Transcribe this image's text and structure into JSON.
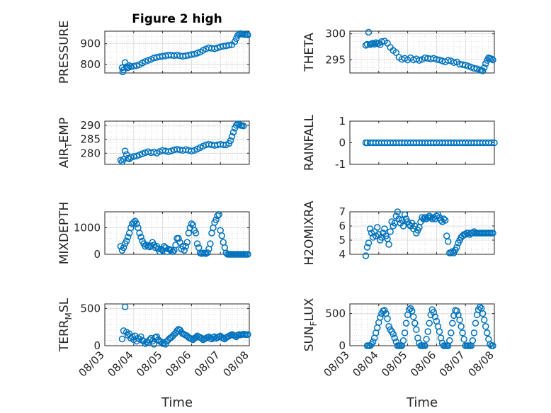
{
  "figure_title": "Figure 2 high",
  "marker_color": "#0072bd",
  "x_tick_labels": [
    "08/03",
    "08/04",
    "08/05",
    "08/06",
    "08/07",
    "08/08"
  ],
  "x_label": "Time",
  "chart_data": [
    {
      "type": "scatter",
      "title": "Figure 2 high",
      "ylabel": "PRESSURE",
      "ylabel_sub": "",
      "xlim": [
        0,
        5
      ],
      "ylim": [
        760,
        960
      ],
      "yticks": [
        800,
        900
      ],
      "grid": true,
      "x": [
        0.6,
        0.62,
        0.65,
        0.7,
        0.75,
        0.8,
        0.85,
        0.9,
        1.0,
        1.1,
        1.2,
        1.3,
        1.4,
        1.5,
        1.6,
        1.7,
        1.8,
        1.9,
        2.0,
        2.1,
        2.2,
        2.3,
        2.4,
        2.5,
        2.6,
        2.7,
        2.8,
        2.9,
        3.0,
        3.1,
        3.2,
        3.3,
        3.4,
        3.5,
        3.6,
        3.7,
        3.8,
        3.9,
        4.0,
        4.1,
        4.2,
        4.3,
        4.4,
        4.5,
        4.55,
        4.6,
        4.65,
        4.7,
        4.75,
        4.8,
        4.85,
        4.9,
        4.95
      ],
      "y": [
        785,
        765,
        775,
        810,
        790,
        785,
        795,
        790,
        792,
        795,
        800,
        808,
        815,
        820,
        825,
        832,
        835,
        838,
        840,
        842,
        845,
        845,
        843,
        845,
        842,
        840,
        842,
        845,
        848,
        850,
        855,
        860,
        868,
        875,
        880,
        878,
        876,
        880,
        885,
        888,
        890,
        893,
        895,
        910,
        925,
        940,
        945,
        948,
        946,
        945,
        944,
        944,
        942
      ]
    },
    {
      "type": "scatter",
      "title": "",
      "ylabel": "THETA",
      "ylabel_sub": "",
      "xlim": [
        0,
        5
      ],
      "ylim": [
        292.5,
        300.5
      ],
      "yticks": [
        295,
        300
      ],
      "grid": true,
      "x": [
        0.55,
        0.6,
        0.65,
        0.7,
        0.75,
        0.8,
        0.85,
        0.9,
        0.95,
        1.0,
        1.05,
        1.1,
        1.2,
        1.3,
        1.4,
        1.5,
        1.6,
        1.7,
        1.8,
        1.9,
        2.0,
        2.1,
        2.2,
        2.3,
        2.4,
        2.5,
        2.6,
        2.7,
        2.8,
        2.9,
        3.0,
        3.1,
        3.2,
        3.3,
        3.4,
        3.5,
        3.6,
        3.7,
        3.8,
        3.9,
        4.0,
        4.1,
        4.2,
        4.3,
        4.4,
        4.5,
        4.55,
        4.6,
        4.65,
        4.7,
        4.75,
        4.8,
        4.85,
        4.9,
        4.95
      ],
      "y": [
        297.8,
        298.0,
        300.3,
        297.9,
        298.1,
        298.2,
        298.0,
        298.3,
        298.1,
        298.2,
        297.9,
        298.5,
        298.6,
        298.2,
        297.4,
        296.8,
        296.4,
        295.5,
        295.1,
        295.3,
        295.0,
        295.4,
        295.0,
        295.2,
        294.9,
        295.1,
        295.4,
        295.3,
        295.2,
        295.3,
        295.1,
        295.0,
        294.8,
        294.6,
        294.9,
        294.8,
        294.5,
        294.6,
        294.2,
        294.1,
        294.0,
        293.8,
        293.6,
        293.4,
        293.3,
        293.1,
        293.0,
        292.9,
        293.5,
        294.3,
        294.9,
        295.4,
        295.3,
        295.2,
        295.0
      ]
    },
    {
      "type": "scatter",
      "title": "",
      "ylabel": "AIR",
      "ylabel_sub": "T",
      "ylabel_tail": "EMP",
      "xlim": [
        0,
        5
      ],
      "ylim": [
        276,
        291.5
      ],
      "yticks": [
        280,
        285,
        290
      ],
      "grid": true,
      "x": [
        0.55,
        0.6,
        0.65,
        0.7,
        0.75,
        0.8,
        0.85,
        0.9,
        1.0,
        1.1,
        1.2,
        1.3,
        1.4,
        1.5,
        1.6,
        1.7,
        1.8,
        1.9,
        2.0,
        2.1,
        2.2,
        2.3,
        2.4,
        2.5,
        2.6,
        2.7,
        2.8,
        2.9,
        3.0,
        3.1,
        3.2,
        3.3,
        3.4,
        3.5,
        3.6,
        3.7,
        3.8,
        3.9,
        4.0,
        4.1,
        4.2,
        4.3,
        4.35,
        4.4,
        4.45,
        4.5,
        4.55,
        4.6,
        4.65,
        4.7,
        4.75,
        4.8
      ],
      "y": [
        277.5,
        277.0,
        277.8,
        280.8,
        279.5,
        278.2,
        278.0,
        278.5,
        278.8,
        279.0,
        279.4,
        279.8,
        280.2,
        280.5,
        280.2,
        280.4,
        280.0,
        280.6,
        281.0,
        280.8,
        280.5,
        280.8,
        281.2,
        281.4,
        281.2,
        281.0,
        281.3,
        281.0,
        280.8,
        281.0,
        281.5,
        282.0,
        282.5,
        283.0,
        283.2,
        283.0,
        282.8,
        283.0,
        283.2,
        283.0,
        283.0,
        283.5,
        284.5,
        286.0,
        287.5,
        289.0,
        290.0,
        290.5,
        290.3,
        290.0,
        289.9,
        289.8
      ]
    },
    {
      "type": "scatter",
      "title": "",
      "ylabel": "RAINFALL",
      "ylabel_sub": "",
      "xlim": [
        0,
        5
      ],
      "ylim": [
        -1,
        1
      ],
      "yticks": [
        -1,
        0,
        1
      ],
      "grid": false,
      "x": [
        0.55,
        0.6,
        0.7,
        0.8,
        0.9,
        1.0,
        1.1,
        1.2,
        1.3,
        1.4,
        1.5,
        1.6,
        1.7,
        1.8,
        1.9,
        2.0,
        2.1,
        2.2,
        2.3,
        2.4,
        2.5,
        2.6,
        2.7,
        2.8,
        2.9,
        3.0,
        3.1,
        3.2,
        3.3,
        3.4,
        3.5,
        3.6,
        3.7,
        3.8,
        3.9,
        4.0,
        4.1,
        4.2,
        4.3,
        4.4,
        4.5,
        4.6,
        4.7,
        4.8,
        4.9,
        5.0
      ],
      "y": [
        0,
        0,
        0,
        0,
        0,
        0,
        0,
        0,
        0,
        0,
        0,
        0,
        0,
        0,
        0,
        0,
        0,
        0,
        0,
        0,
        0,
        0,
        0,
        0,
        0,
        0,
        0,
        0,
        0,
        0,
        0,
        0,
        0,
        0,
        0,
        0,
        0,
        0,
        0,
        0,
        0,
        0,
        0,
        0,
        0,
        0
      ]
    },
    {
      "type": "scatter",
      "title": "",
      "ylabel": "MIXDEPTH",
      "ylabel_sub": "",
      "xlim": [
        0,
        5
      ],
      "ylim": [
        0,
        1600
      ],
      "yticks": [
        0,
        1000
      ],
      "grid": true,
      "x": [
        0.55,
        0.6,
        0.65,
        0.7,
        0.75,
        0.8,
        0.85,
        0.9,
        0.95,
        1.0,
        1.05,
        1.1,
        1.15,
        1.2,
        1.25,
        1.3,
        1.35,
        1.4,
        1.45,
        1.5,
        1.55,
        1.6,
        1.65,
        1.7,
        1.75,
        1.8,
        1.85,
        1.9,
        1.95,
        2.0,
        2.05,
        2.1,
        2.15,
        2.2,
        2.25,
        2.3,
        2.35,
        2.4,
        2.45,
        2.5,
        2.55,
        2.6,
        2.65,
        2.7,
        2.75,
        2.8,
        2.85,
        2.9,
        2.95,
        3.0,
        3.05,
        3.1,
        3.15,
        3.2,
        3.25,
        3.3,
        3.35,
        3.4,
        3.45,
        3.5,
        3.55,
        3.6,
        3.65,
        3.7,
        3.75,
        3.8,
        3.85,
        3.9,
        3.95,
        4.0,
        4.05,
        4.1,
        4.15,
        4.2,
        4.25,
        4.3,
        4.35,
        4.4,
        4.45,
        4.5,
        4.55,
        4.6,
        4.65,
        4.7,
        4.75,
        4.8,
        4.85,
        4.9,
        4.95
      ],
      "y": [
        300,
        150,
        250,
        400,
        500,
        650,
        800,
        1000,
        1150,
        1200,
        1250,
        1150,
        1000,
        800,
        650,
        500,
        400,
        300,
        350,
        300,
        280,
        320,
        450,
        350,
        250,
        300,
        200,
        100,
        200,
        150,
        300,
        250,
        100,
        200,
        180,
        160,
        100,
        150,
        350,
        600,
        600,
        450,
        200,
        300,
        150,
        300,
        450,
        800,
        1000,
        1150,
        1100,
        900,
        800,
        400,
        250,
        50,
        30,
        50,
        40,
        30,
        60,
        200,
        400,
        800,
        1000,
        1200,
        1300,
        1450,
        1500,
        900,
        700,
        450,
        250,
        50,
        0,
        0,
        0,
        0,
        0,
        0,
        0,
        0,
        0,
        0,
        0,
        0,
        0,
        0,
        0
      ]
    },
    {
      "type": "scatter",
      "title": "",
      "ylabel": "H2OMIXRA",
      "ylabel_sub": "",
      "xlim": [
        0,
        5
      ],
      "ylim": [
        4,
        7
      ],
      "yticks": [
        4,
        5,
        6,
        7
      ],
      "grid": true,
      "x": [
        0.55,
        0.6,
        0.65,
        0.7,
        0.75,
        0.8,
        0.85,
        0.9,
        0.95,
        1.0,
        1.05,
        1.1,
        1.15,
        1.2,
        1.25,
        1.3,
        1.35,
        1.4,
        1.45,
        1.5,
        1.55,
        1.6,
        1.65,
        1.7,
        1.75,
        1.8,
        1.85,
        1.9,
        1.95,
        2.0,
        2.05,
        2.1,
        2.15,
        2.2,
        2.25,
        2.3,
        2.35,
        2.4,
        2.45,
        2.5,
        2.55,
        2.6,
        2.65,
        2.7,
        2.75,
        2.8,
        2.85,
        2.9,
        2.95,
        3.0,
        3.05,
        3.1,
        3.15,
        3.2,
        3.25,
        3.3,
        3.35,
        3.4,
        3.45,
        3.5,
        3.55,
        3.6,
        3.65,
        3.7,
        3.75,
        3.8,
        3.85,
        3.9,
        3.95,
        4.0,
        4.05,
        4.1,
        4.15,
        4.2,
        4.25,
        4.3,
        4.35,
        4.4,
        4.45,
        4.5,
        4.55,
        4.6,
        4.65,
        4.7,
        4.75,
        4.8,
        4.85,
        4.9,
        4.95
      ],
      "y": [
        3.9,
        4.5,
        4.8,
        5.8,
        5.5,
        5.2,
        5.6,
        5.3,
        5.9,
        5.4,
        5.0,
        5.2,
        5.5,
        5.8,
        5.3,
        5.1,
        4.7,
        5.6,
        6.3,
        6.0,
        6.2,
        6.7,
        7.0,
        6.5,
        6.2,
        6.4,
        6.0,
        6.8,
        6.5,
        6.3,
        6.1,
        6.0,
        6.2,
        5.8,
        6.0,
        5.5,
        5.7,
        5.9,
        6.3,
        6.6,
        6.5,
        6.6,
        6.5,
        6.6,
        6.7,
        6.6,
        6.5,
        6.6,
        6.5,
        6.7,
        6.8,
        6.6,
        6.4,
        6.3,
        6.5,
        6.4,
        5.3,
        4.9,
        4.1,
        4.1,
        4.2,
        4.1,
        4.3,
        4.5,
        4.8,
        5.0,
        5.2,
        5.3,
        5.4,
        5.4,
        5.5,
        5.5,
        5.4,
        5.5,
        5.5,
        5.6,
        5.5,
        5.5,
        5.5,
        5.5,
        5.5,
        5.5,
        5.5,
        5.5,
        5.5,
        5.5,
        5.5,
        5.5,
        5.5
      ]
    },
    {
      "type": "scatter",
      "title": "",
      "ylabel": "TERR",
      "ylabel_sub": "M",
      "ylabel_tail": "SL",
      "xlim": [
        0,
        5
      ],
      "ylim": [
        0,
        560
      ],
      "yticks": [
        0,
        500
      ],
      "grid": true,
      "x": [
        0.6,
        0.65,
        0.7,
        0.75,
        0.8,
        0.85,
        0.9,
        0.95,
        1.0,
        1.05,
        1.1,
        1.15,
        1.2,
        1.25,
        1.3,
        1.35,
        1.4,
        1.45,
        1.5,
        1.55,
        1.6,
        1.65,
        1.7,
        1.75,
        1.8,
        1.85,
        1.9,
        1.95,
        2.0,
        2.05,
        2.1,
        2.15,
        2.2,
        2.25,
        2.3,
        2.35,
        2.4,
        2.45,
        2.5,
        2.55,
        2.6,
        2.65,
        2.7,
        2.75,
        2.8,
        2.85,
        2.9,
        2.95,
        3.0,
        3.05,
        3.1,
        3.15,
        3.2,
        3.25,
        3.3,
        3.35,
        3.4,
        3.45,
        3.5,
        3.55,
        3.6,
        3.65,
        3.7,
        3.75,
        3.8,
        3.85,
        3.9,
        3.95,
        4.0,
        4.05,
        4.1,
        4.15,
        4.2,
        4.25,
        4.3,
        4.35,
        4.4,
        4.45,
        4.5,
        4.55,
        4.6,
        4.65,
        4.7,
        4.75,
        4.8,
        4.85,
        4.9,
        4.95
      ],
      "y": [
        90,
        200,
        520,
        180,
        140,
        160,
        100,
        120,
        80,
        130,
        60,
        100,
        90,
        120,
        70,
        60,
        30,
        50,
        40,
        80,
        100,
        60,
        20,
        110,
        120,
        80,
        60,
        50,
        30,
        40,
        20,
        60,
        80,
        100,
        110,
        130,
        150,
        170,
        200,
        220,
        210,
        180,
        160,
        150,
        140,
        130,
        110,
        100,
        90,
        80,
        100,
        110,
        130,
        120,
        110,
        100,
        80,
        90,
        100,
        110,
        120,
        100,
        90,
        110,
        120,
        100,
        110,
        120,
        130,
        110,
        100,
        90,
        110,
        120,
        130,
        140,
        150,
        140,
        130,
        120,
        140,
        150,
        145,
        150,
        155,
        150,
        148,
        150
      ]
    },
    {
      "type": "scatter",
      "title": "",
      "ylabel": "SUN",
      "ylabel_sub": "F",
      "ylabel_tail": "LUX",
      "xlim": [
        0,
        5
      ],
      "ylim": [
        0,
        650
      ],
      "yticks": [
        0,
        500
      ],
      "grid": true,
      "x": [
        0.6,
        0.65,
        0.7,
        0.75,
        0.8,
        0.85,
        0.9,
        0.95,
        1.0,
        1.05,
        1.1,
        1.15,
        1.2,
        1.25,
        1.3,
        1.35,
        1.4,
        1.45,
        1.5,
        1.55,
        1.6,
        1.65,
        1.7,
        1.75,
        1.8,
        1.85,
        1.9,
        1.95,
        2.0,
        2.05,
        2.1,
        2.15,
        2.2,
        2.25,
        2.3,
        2.35,
        2.4,
        2.45,
        2.5,
        2.55,
        2.6,
        2.65,
        2.7,
        2.75,
        2.8,
        2.85,
        2.9,
        2.95,
        3.0,
        3.05,
        3.1,
        3.15,
        3.2,
        3.25,
        3.3,
        3.35,
        3.4,
        3.45,
        3.5,
        3.55,
        3.6,
        3.65,
        3.7,
        3.75,
        3.8,
        3.85,
        3.9,
        3.95,
        4.0,
        4.05,
        4.1,
        4.15,
        4.2,
        4.25,
        4.3,
        4.35,
        4.4,
        4.45,
        4.5,
        4.55,
        4.6,
        4.65,
        4.7,
        4.75,
        4.8,
        4.85,
        4.9,
        4.95
      ],
      "y": [
        0,
        0,
        0,
        20,
        60,
        120,
        200,
        280,
        360,
        440,
        500,
        540,
        550,
        500,
        420,
        300,
        250,
        220,
        180,
        120,
        60,
        0,
        0,
        0,
        0,
        80,
        200,
        350,
        480,
        560,
        580,
        540,
        450,
        350,
        250,
        120,
        40,
        0,
        0,
        0,
        0,
        100,
        220,
        350,
        480,
        560,
        520,
        450,
        380,
        300,
        220,
        120,
        40,
        0,
        0,
        0,
        0,
        80,
        200,
        350,
        470,
        550,
        540,
        480,
        400,
        300,
        200,
        100,
        0,
        0,
        0,
        0,
        0,
        80,
        200,
        350,
        480,
        560,
        600,
        580,
        500,
        400,
        300,
        200,
        100,
        20,
        0,
        0
      ]
    }
  ]
}
